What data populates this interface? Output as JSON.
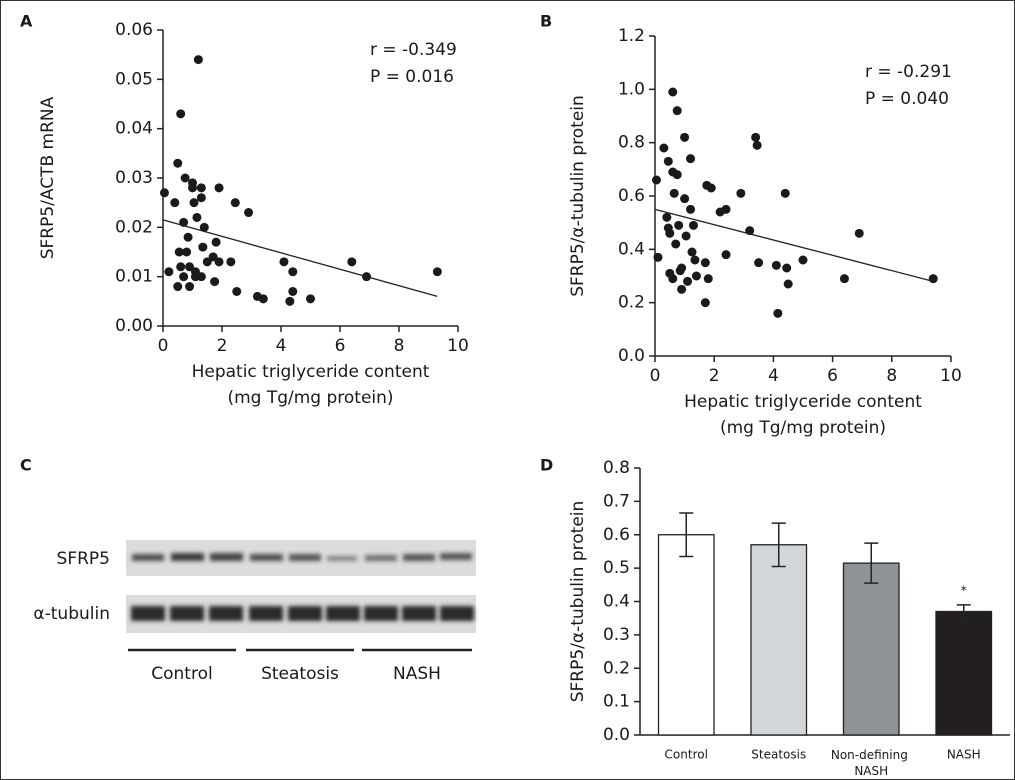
{
  "chart_data": [
    {
      "type": "scatter",
      "panel": "A",
      "ylabel": "SFRP5/ACTB mRNA",
      "xlabel": [
        "Hepatic triglyceride content",
        "(mg Tg/mg protein)"
      ],
      "annotations": [
        "r = -0.349",
        "P = 0.016"
      ],
      "color": "#1a1a1a",
      "x": [
        0.05,
        0.2,
        0.4,
        0.5,
        0.55,
        0.6,
        0.6,
        0.5,
        0.7,
        0.75,
        0.7,
        0.8,
        0.85,
        0.9,
        0.9,
        1.0,
        1.0,
        1.05,
        1.1,
        1.1,
        1.15,
        1.2,
        1.3,
        1.3,
        1.3,
        1.35,
        1.4,
        1.5,
        1.7,
        1.75,
        1.8,
        1.9,
        1.9,
        2.3,
        2.45,
        2.5,
        2.9,
        3.2,
        3.4,
        4.1,
        4.3,
        4.4,
        4.4,
        5.0,
        6.4,
        6.9,
        9.3
      ],
      "values": [
        0.027,
        0.011,
        0.025,
        0.033,
        0.015,
        0.043,
        0.012,
        0.008,
        0.021,
        0.03,
        0.01,
        0.015,
        0.018,
        0.008,
        0.012,
        0.028,
        0.029,
        0.025,
        0.011,
        0.01,
        0.022,
        0.054,
        0.028,
        0.026,
        0.01,
        0.016,
        0.02,
        0.013,
        0.014,
        0.009,
        0.017,
        0.028,
        0.013,
        0.013,
        0.025,
        0.007,
        0.023,
        0.006,
        0.0055,
        0.013,
        0.005,
        0.011,
        0.007,
        0.0055,
        0.013,
        0.01,
        0.011
      ],
      "trend": {
        "x": [
          0,
          9.3
        ],
        "values": [
          0.0215,
          0.006
        ]
      },
      "xlim": [
        0,
        10
      ],
      "xticks": [
        0,
        2,
        4,
        6,
        8,
        10
      ],
      "ylim": [
        0,
        0.06
      ],
      "yticks": [
        {
          "value": 0,
          "label": "0.00"
        },
        0.01,
        0.02,
        0.03,
        0.04,
        0.05,
        0.06
      ]
    },
    {
      "type": "scatter",
      "panel": "B",
      "ylabel": "SFRP5/α-tubulin protein",
      "xlabel": [
        "Hepatic triglyceride content",
        "(mg Tg/mg protein)"
      ],
      "annotations": [
        "r = -0.291",
        "P = 0.040"
      ],
      "color": "#1a1a1a",
      "x": [
        0.05,
        0.1,
        0.3,
        0.4,
        0.45,
        0.45,
        0.5,
        0.5,
        0.6,
        0.6,
        0.6,
        0.65,
        0.7,
        0.75,
        0.75,
        0.8,
        0.85,
        0.9,
        0.9,
        1.0,
        1.0,
        1.05,
        1.1,
        1.2,
        1.2,
        1.25,
        1.3,
        1.35,
        1.4,
        1.7,
        1.7,
        1.75,
        1.8,
        1.9,
        2.2,
        2.4,
        2.4,
        2.9,
        3.2,
        3.4,
        3.45,
        3.5,
        4.1,
        4.15,
        4.4,
        4.45,
        4.5,
        5.0,
        6.4,
        6.9,
        9.4
      ],
      "values": [
        0.66,
        0.37,
        0.78,
        0.52,
        0.48,
        0.73,
        0.46,
        0.31,
        0.99,
        0.69,
        0.29,
        0.61,
        0.42,
        0.92,
        0.68,
        0.49,
        0.32,
        0.25,
        0.33,
        0.59,
        0.82,
        0.45,
        0.28,
        0.74,
        0.55,
        0.39,
        0.49,
        0.36,
        0.3,
        0.35,
        0.2,
        0.64,
        0.29,
        0.63,
        0.54,
        0.55,
        0.38,
        0.61,
        0.47,
        0.82,
        0.79,
        0.35,
        0.34,
        0.16,
        0.61,
        0.33,
        0.27,
        0.36,
        0.29,
        0.46,
        0.29
      ],
      "trend": {
        "x": [
          0,
          9.4
        ],
        "values": [
          0.55,
          0.28
        ]
      },
      "xlim": [
        0,
        10
      ],
      "xticks": [
        0,
        2,
        4,
        6,
        8,
        10
      ],
      "ylim": [
        0,
        1.2
      ],
      "yticks": [
        {
          "value": 0,
          "label": "0.0"
        },
        0.2,
        0.4,
        0.6,
        0.8,
        {
          "value": 1,
          "label": "1.0"
        },
        1.2
      ]
    },
    {
      "type": "bar",
      "panel": "D",
      "ylabel": "SFRP5/α-tubulin protein",
      "categories": [
        "Control",
        "Steatosis",
        "Non-defining NASH",
        "NASH"
      ],
      "values": [
        0.6,
        0.57,
        0.515,
        0.37
      ],
      "errors": [
        0.065,
        0.065,
        0.06,
        0.02
      ],
      "colors": [
        "#ffffff",
        "#d4d7d9",
        "#909396",
        "#231f20"
      ],
      "annotations": [
        "",
        "",
        "",
        "*"
      ],
      "ylim": [
        0,
        0.8
      ],
      "yticks": [
        {
          "value": 0,
          "label": "0.0"
        },
        0.1,
        0.2,
        0.3,
        0.4,
        0.5,
        0.6,
        0.7,
        0.8
      ]
    }
  ],
  "blot": {
    "panel": "C",
    "rows": [
      "SFRP5",
      "α-tubulin"
    ],
    "groups": [
      "Control",
      "Steatosis",
      "NASH"
    ]
  }
}
